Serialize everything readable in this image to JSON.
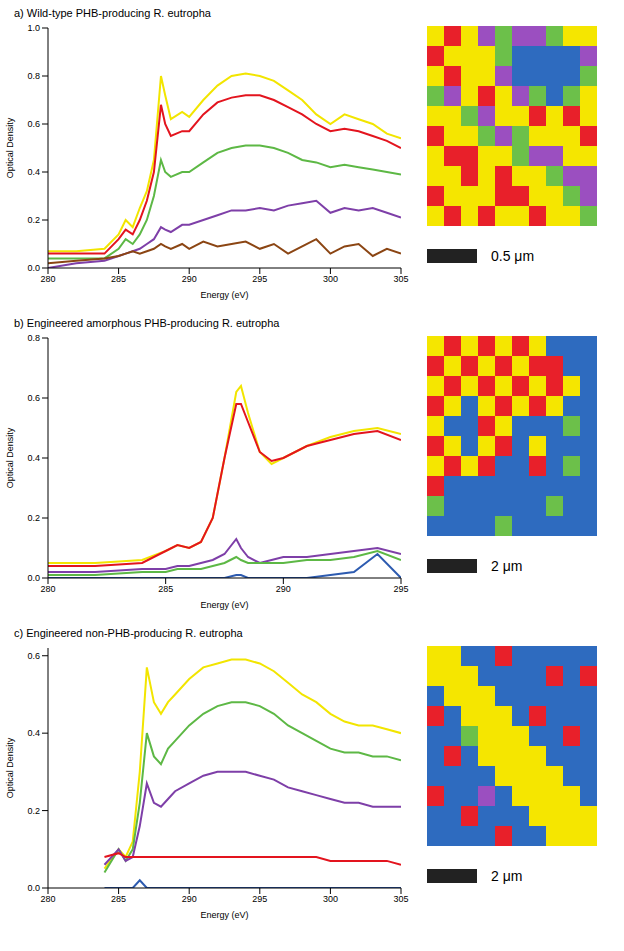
{
  "chart_data": [
    {
      "type": "line",
      "title": "a) Wild-type PHB-producing R. eutropha",
      "x_label": "Energy (eV)",
      "y_label": "Optical Density",
      "xlim": [
        280,
        305
      ],
      "xticks": [
        280,
        285,
        290,
        295,
        300,
        305
      ],
      "ylim": [
        0,
        1.0
      ],
      "yticks": [
        {
          "value": 0,
          "label": "0.0"
        },
        0.2,
        0.4,
        0.6,
        0.8,
        {
          "value": 1.0,
          "label": "1.0"
        }
      ],
      "x": [
        280,
        282,
        284,
        285,
        285.5,
        286,
        286.5,
        287,
        287.5,
        288,
        288.3,
        288.7,
        289.5,
        290,
        291,
        292,
        293,
        294,
        295,
        296,
        297,
        298,
        299,
        300,
        301,
        302,
        303,
        304,
        305
      ],
      "series": [
        {
          "color": "#f2e500",
          "values": [
            0.07,
            0.07,
            0.08,
            0.14,
            0.2,
            0.17,
            0.25,
            0.32,
            0.45,
            0.8,
            0.72,
            0.62,
            0.65,
            0.63,
            0.7,
            0.76,
            0.8,
            0.81,
            0.8,
            0.78,
            0.74,
            0.7,
            0.64,
            0.6,
            0.64,
            0.62,
            0.6,
            0.56,
            0.54
          ]
        },
        {
          "color": "#e3141e",
          "values": [
            0.06,
            0.06,
            0.06,
            0.12,
            0.16,
            0.14,
            0.2,
            0.28,
            0.4,
            0.68,
            0.6,
            0.55,
            0.57,
            0.57,
            0.64,
            0.69,
            0.71,
            0.72,
            0.72,
            0.7,
            0.67,
            0.64,
            0.6,
            0.57,
            0.58,
            0.57,
            0.55,
            0.53,
            0.5
          ]
        },
        {
          "color": "#5db845",
          "values": [
            0.04,
            0.04,
            0.04,
            0.08,
            0.12,
            0.1,
            0.14,
            0.2,
            0.3,
            0.45,
            0.4,
            0.38,
            0.4,
            0.4,
            0.44,
            0.48,
            0.5,
            0.51,
            0.51,
            0.5,
            0.48,
            0.45,
            0.44,
            0.42,
            0.43,
            0.42,
            0.41,
            0.4,
            0.39
          ]
        },
        {
          "color": "#7e3fa8",
          "values": [
            0.0,
            0.02,
            0.03,
            0.05,
            0.06,
            0.07,
            0.08,
            0.1,
            0.12,
            0.17,
            0.16,
            0.15,
            0.18,
            0.18,
            0.2,
            0.22,
            0.24,
            0.24,
            0.25,
            0.24,
            0.26,
            0.27,
            0.28,
            0.23,
            0.25,
            0.24,
            0.25,
            0.23,
            0.21
          ]
        },
        {
          "color": "#8b4513",
          "values": [
            0.02,
            0.03,
            0.04,
            0.05,
            0.06,
            0.07,
            0.06,
            0.07,
            0.08,
            0.1,
            0.09,
            0.08,
            0.1,
            0.08,
            0.11,
            0.09,
            0.1,
            0.11,
            0.08,
            0.1,
            0.06,
            0.09,
            0.12,
            0.06,
            0.09,
            0.1,
            0.05,
            0.08,
            0.06
          ]
        }
      ],
      "map": {
        "scale_bar": "0.5 μm",
        "colors": [
          "#f5e600",
          "#e8202a",
          "#6cc04a",
          "#9b4fc0",
          "#2e6bbf"
        ],
        "cells": [
          [
            0,
            1,
            0,
            3,
            2,
            3,
            3,
            2,
            0,
            0
          ],
          [
            1,
            0,
            0,
            0,
            2,
            4,
            4,
            4,
            4,
            3
          ],
          [
            0,
            1,
            0,
            0,
            3,
            4,
            4,
            4,
            4,
            2
          ],
          [
            2,
            3,
            0,
            1,
            0,
            3,
            2,
            4,
            2,
            0
          ],
          [
            0,
            0,
            2,
            3,
            0,
            0,
            1,
            0,
            1,
            0
          ],
          [
            1,
            0,
            0,
            2,
            3,
            2,
            0,
            0,
            0,
            1
          ],
          [
            0,
            1,
            1,
            0,
            0,
            2,
            3,
            3,
            0,
            0
          ],
          [
            0,
            0,
            1,
            0,
            1,
            0,
            0,
            2,
            3,
            3
          ],
          [
            1,
            0,
            0,
            0,
            1,
            1,
            0,
            0,
            2,
            3
          ],
          [
            0,
            1,
            0,
            1,
            0,
            0,
            1,
            0,
            0,
            2
          ]
        ]
      }
    },
    {
      "type": "line",
      "title": "b) Engineered amorphous PHB-producing R. eutropha",
      "x_label": "Energy (eV)",
      "y_label": "Optical Density",
      "xlim": [
        280,
        295
      ],
      "xticks": [
        280,
        285,
        290,
        295
      ],
      "ylim": [
        0,
        0.8
      ],
      "yticks": [
        {
          "value": 0,
          "label": "0.0"
        },
        0.2,
        0.4,
        0.6,
        0.8
      ],
      "x": [
        280,
        282,
        284,
        285,
        285.5,
        286,
        286.5,
        287,
        287.5,
        288,
        288.2,
        288.5,
        289,
        289.5,
        290,
        291,
        292,
        293,
        294,
        295
      ],
      "series": [
        {
          "color": "#f2e500",
          "values": [
            0.05,
            0.05,
            0.06,
            0.09,
            0.11,
            0.1,
            0.12,
            0.2,
            0.4,
            0.62,
            0.64,
            0.55,
            0.42,
            0.38,
            0.4,
            0.44,
            0.47,
            0.49,
            0.5,
            0.48
          ]
        },
        {
          "color": "#e3141e",
          "values": [
            0.04,
            0.04,
            0.05,
            0.09,
            0.11,
            0.1,
            0.12,
            0.2,
            0.4,
            0.58,
            0.58,
            0.52,
            0.42,
            0.39,
            0.4,
            0.44,
            0.46,
            0.48,
            0.49,
            0.46
          ]
        },
        {
          "color": "#7e3fa8",
          "values": [
            0.02,
            0.02,
            0.03,
            0.03,
            0.04,
            0.04,
            0.05,
            0.06,
            0.08,
            0.13,
            0.1,
            0.07,
            0.05,
            0.06,
            0.07,
            0.07,
            0.08,
            0.09,
            0.1,
            0.08
          ]
        },
        {
          "color": "#5db845",
          "values": [
            0.01,
            0.01,
            0.02,
            0.02,
            0.03,
            0.03,
            0.03,
            0.04,
            0.05,
            0.07,
            0.06,
            0.05,
            0.05,
            0.05,
            0.05,
            0.06,
            0.06,
            0.07,
            0.09,
            0.06
          ]
        },
        {
          "color": "#2d5bb0",
          "values": [
            0.0,
            0.0,
            0.0,
            0.0,
            0.0,
            0.0,
            0.0,
            0.0,
            0.0,
            0.01,
            0.01,
            0.0,
            0.0,
            0.0,
            0.0,
            0.0,
            0.01,
            0.02,
            0.08,
            0.0
          ]
        }
      ],
      "map": {
        "scale_bar": "2 μm",
        "colors": [
          "#f5e600",
          "#e8202a",
          "#6cc04a",
          "#2e6bbf"
        ],
        "cells": [
          [
            0,
            1,
            0,
            1,
            0,
            1,
            0,
            3,
            3,
            3
          ],
          [
            1,
            0,
            1,
            0,
            1,
            0,
            1,
            1,
            3,
            3
          ],
          [
            0,
            1,
            0,
            1,
            0,
            1,
            0,
            1,
            0,
            3
          ],
          [
            1,
            0,
            3,
            0,
            1,
            0,
            1,
            0,
            3,
            3
          ],
          [
            0,
            3,
            3,
            1,
            0,
            3,
            3,
            3,
            2,
            3
          ],
          [
            1,
            0,
            3,
            0,
            1,
            3,
            0,
            3,
            3,
            3
          ],
          [
            0,
            1,
            0,
            1,
            3,
            3,
            1,
            3,
            2,
            3
          ],
          [
            1,
            3,
            3,
            3,
            3,
            3,
            3,
            3,
            3,
            3
          ],
          [
            2,
            3,
            3,
            3,
            3,
            3,
            3,
            2,
            3,
            3
          ],
          [
            3,
            3,
            3,
            3,
            2,
            3,
            3,
            3,
            3,
            3
          ]
        ]
      }
    },
    {
      "type": "line",
      "title": "c) Engineered non-PHB-producing R. eutropha",
      "x_label": "Energy (eV)",
      "y_label": "Optical Density",
      "xlim": [
        280,
        305
      ],
      "xticks": [
        280,
        285,
        290,
        295,
        300,
        305
      ],
      "ylim": [
        0,
        0.62
      ],
      "yticks": [
        {
          "value": 0,
          "label": "0.0"
        },
        0.2,
        0.4,
        0.6
      ],
      "x": [
        284,
        285,
        285.5,
        286,
        286.5,
        287,
        287.5,
        288,
        288.5,
        289,
        290,
        291,
        292,
        293,
        294,
        295,
        296,
        297,
        298,
        299,
        300,
        301,
        302,
        303,
        304,
        305
      ],
      "series": [
        {
          "color": "#f2e500",
          "values": [
            0.05,
            0.1,
            0.08,
            0.12,
            0.3,
            0.57,
            0.48,
            0.45,
            0.48,
            0.5,
            0.54,
            0.57,
            0.58,
            0.59,
            0.59,
            0.58,
            0.56,
            0.53,
            0.5,
            0.48,
            0.45,
            0.43,
            0.42,
            0.42,
            0.41,
            0.4
          ]
        },
        {
          "color": "#5db845",
          "values": [
            0.04,
            0.1,
            0.07,
            0.1,
            0.22,
            0.4,
            0.34,
            0.32,
            0.36,
            0.38,
            0.42,
            0.45,
            0.47,
            0.48,
            0.48,
            0.47,
            0.45,
            0.42,
            0.4,
            0.38,
            0.36,
            0.35,
            0.35,
            0.34,
            0.34,
            0.33
          ]
        },
        {
          "color": "#7e3fa8",
          "values": [
            0.06,
            0.1,
            0.07,
            0.08,
            0.16,
            0.27,
            0.22,
            0.21,
            0.23,
            0.25,
            0.27,
            0.29,
            0.3,
            0.3,
            0.3,
            0.29,
            0.28,
            0.26,
            0.25,
            0.24,
            0.23,
            0.22,
            0.22,
            0.21,
            0.21,
            0.21
          ]
        },
        {
          "color": "#e3141e",
          "values": [
            0.08,
            0.09,
            0.08,
            0.08,
            0.08,
            0.08,
            0.08,
            0.08,
            0.08,
            0.08,
            0.08,
            0.08,
            0.08,
            0.08,
            0.08,
            0.08,
            0.08,
            0.08,
            0.08,
            0.08,
            0.07,
            0.07,
            0.07,
            0.07,
            0.07,
            0.06
          ]
        },
        {
          "color": "#2d5bb0",
          "values": [
            0.0,
            0.0,
            0.0,
            0.0,
            0.02,
            0.0,
            0.0,
            0.0,
            0.0,
            0.0,
            0.0,
            0.0,
            0.0,
            0.0,
            0.0,
            0.0,
            0.0,
            0.0,
            0.0,
            0.0,
            0.0,
            0.0,
            0.0,
            0.0,
            0.0,
            0.0
          ]
        }
      ],
      "map": {
        "scale_bar": "2 μm",
        "colors": [
          "#f5e600",
          "#e8202a",
          "#6cc04a",
          "#9b4fc0",
          "#2e6bbf"
        ],
        "cells": [
          [
            0,
            0,
            4,
            4,
            1,
            4,
            4,
            4,
            4,
            4
          ],
          [
            0,
            0,
            0,
            4,
            4,
            4,
            4,
            1,
            4,
            1
          ],
          [
            4,
            0,
            0,
            0,
            4,
            4,
            4,
            4,
            4,
            4
          ],
          [
            1,
            4,
            0,
            0,
            0,
            4,
            1,
            4,
            4,
            4
          ],
          [
            4,
            4,
            2,
            0,
            0,
            0,
            4,
            4,
            1,
            4
          ],
          [
            4,
            1,
            4,
            0,
            0,
            0,
            0,
            4,
            4,
            4
          ],
          [
            4,
            4,
            4,
            4,
            0,
            0,
            0,
            0,
            4,
            4
          ],
          [
            1,
            4,
            4,
            3,
            4,
            0,
            0,
            0,
            0,
            4
          ],
          [
            4,
            4,
            1,
            4,
            4,
            4,
            0,
            0,
            0,
            0
          ],
          [
            4,
            4,
            4,
            4,
            1,
            4,
            4,
            0,
            0,
            0
          ]
        ]
      }
    }
  ]
}
